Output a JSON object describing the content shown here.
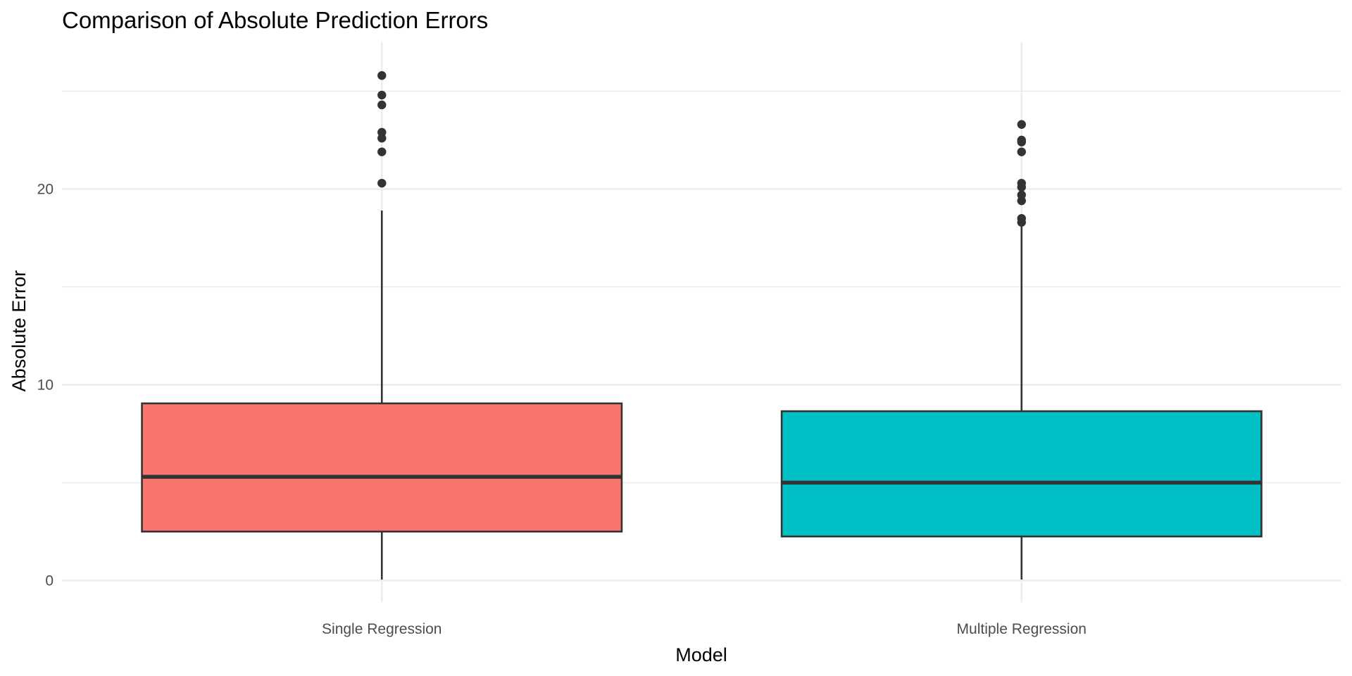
{
  "chart_data": {
    "type": "box",
    "title": "Comparison of Absolute Prediction Errors",
    "xlabel": "Model",
    "ylabel": "Absolute Error",
    "categories": [
      "Single Regression",
      "Multiple Regression"
    ],
    "ylim": [
      -1.1,
      27.5
    ],
    "yticks": [
      0,
      10,
      20
    ],
    "y_minor_ticks": [
      5,
      15,
      25
    ],
    "grid": true,
    "legend": "none",
    "colors": {
      "Single Regression": "#F8766D",
      "Multiple Regression": "#00BFC4",
      "outline": "#333333",
      "grid": "#ebebeb"
    },
    "boxes": [
      {
        "category": "Single Regression",
        "min": 0.05,
        "q1": 2.5,
        "median": 5.3,
        "q3": 9.05,
        "max": 18.9,
        "outliers": [
          20.3,
          21.9,
          22.6,
          22.9,
          24.3,
          24.8,
          25.8
        ]
      },
      {
        "category": "Multiple Regression",
        "min": 0.05,
        "q1": 2.25,
        "median": 5.0,
        "q3": 8.65,
        "max": 18.2,
        "outliers": [
          18.3,
          18.5,
          19.4,
          19.7,
          20.1,
          20.3,
          21.9,
          22.4,
          22.5,
          23.3
        ]
      }
    ]
  }
}
